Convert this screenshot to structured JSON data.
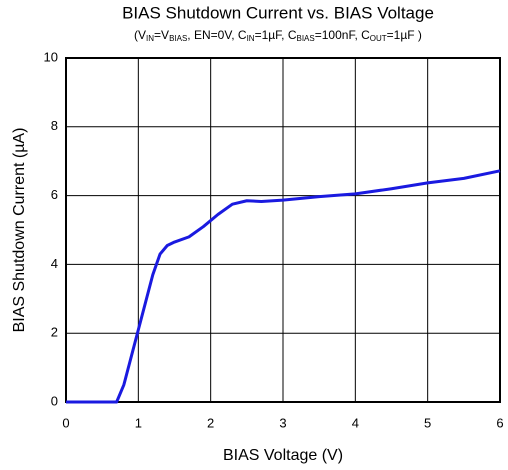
{
  "chart_data": {
    "type": "line",
    "title": "BIAS Shutdown Current vs. BIAS Voltage",
    "subtitle": [
      "(V",
      "IN",
      "=V",
      "BIAS",
      ", EN=0V, C",
      "IN",
      "=1µF, C",
      "BIAS",
      "=100nF, C",
      "OUT",
      "=1µF )"
    ],
    "xlabel": "BIAS Voltage (V)",
    "ylabel": "BIAS Shutdown Current (µA)",
    "x": [
      0,
      0.7,
      0.8,
      0.9,
      1.0,
      1.1,
      1.2,
      1.3,
      1.4,
      1.5,
      1.7,
      1.9,
      2.1,
      2.3,
      2.5,
      2.7,
      3.0,
      3.5,
      4.0,
      4.5,
      5.0,
      5.5,
      6.0
    ],
    "series": [
      {
        "name": "BIAS Shutdown Current",
        "color": "#1a1ae0",
        "values": [
          0,
          0,
          0.5,
          1.3,
          2.1,
          2.9,
          3.7,
          4.3,
          4.55,
          4.65,
          4.8,
          5.1,
          5.45,
          5.75,
          5.85,
          5.83,
          5.87,
          5.97,
          6.05,
          6.2,
          6.37,
          6.5,
          6.72
        ]
      }
    ],
    "xlim": [
      0,
      6
    ],
    "xticks": [
      0,
      1,
      2,
      3,
      4,
      5,
      6
    ],
    "ylim": [
      0,
      10
    ],
    "yticks": [
      0,
      2,
      4,
      6,
      8,
      10
    ],
    "grid": true
  }
}
